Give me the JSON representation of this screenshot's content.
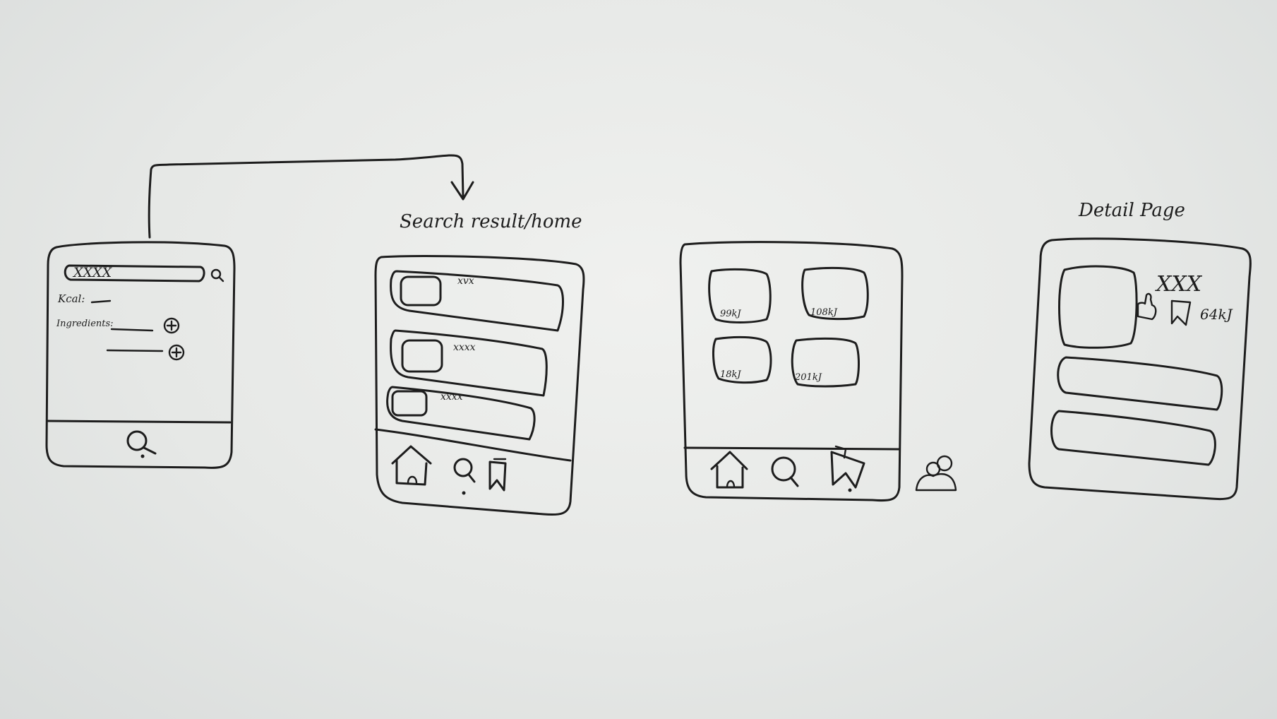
{
  "board": {
    "titles": {
      "search_results_home": "Search result/home",
      "detail_page": "Detail Page"
    },
    "screen_search": {
      "search_text": "XXXX",
      "kcal_label": "Kcal:",
      "ingredients_label": "Ingredients:"
    },
    "screen_results": {
      "items": [
        {
          "title": "xvx"
        },
        {
          "title": "xxxx"
        },
        {
          "title": "xxxx"
        }
      ]
    },
    "screen_grid": {
      "tiles": [
        {
          "label": "99kJ"
        },
        {
          "label": "108kJ"
        },
        {
          "label": "18kJ"
        },
        {
          "label": "201kJ"
        }
      ]
    },
    "screen_detail": {
      "title": "XXX",
      "energy": "64kJ"
    }
  }
}
